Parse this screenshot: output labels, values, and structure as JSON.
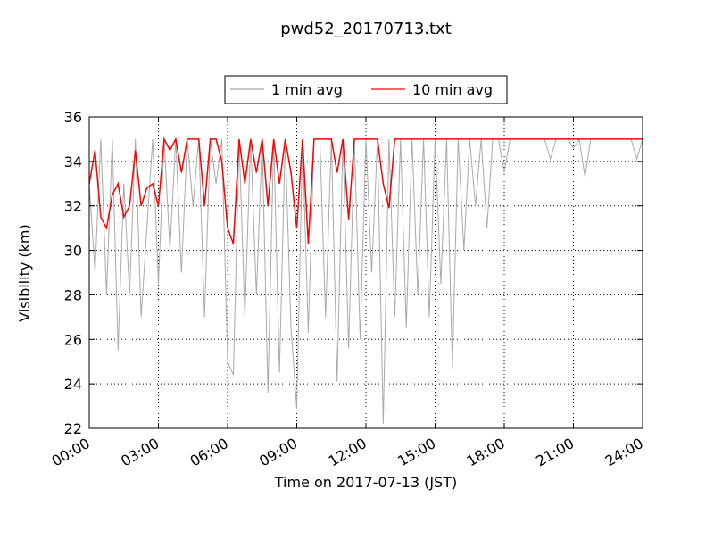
{
  "chart_data": {
    "type": "line",
    "title": "pwd52_20170713.txt",
    "x_label": "Time on 2017-07-13 (JST)",
    "y_label": "Visibility (km)",
    "x": [
      0,
      0.25,
      0.5,
      0.75,
      1,
      1.25,
      1.5,
      1.75,
      2,
      2.25,
      2.5,
      2.75,
      3,
      3.25,
      3.5,
      3.75,
      4,
      4.25,
      4.5,
      4.75,
      5,
      5.25,
      5.5,
      5.75,
      6,
      6.25,
      6.5,
      6.75,
      7,
      7.25,
      7.5,
      7.75,
      8,
      8.25,
      8.5,
      8.75,
      9,
      9.25,
      9.5,
      9.75,
      10,
      10.25,
      10.5,
      10.75,
      11,
      11.25,
      11.5,
      11.75,
      12,
      12.25,
      12.5,
      12.75,
      13,
      13.25,
      13.5,
      13.75,
      14,
      14.25,
      14.5,
      14.75,
      15,
      15.25,
      15.5,
      15.75,
      16,
      16.25,
      16.5,
      16.75,
      17,
      17.25,
      17.5,
      17.75,
      18,
      18.25,
      18.5,
      18.75,
      19,
      19.25,
      19.5,
      19.75,
      20,
      20.25,
      20.5,
      20.75,
      21,
      21.25,
      21.5,
      21.75,
      22,
      22.25,
      22.5,
      22.75,
      23,
      23.25,
      23.5,
      23.75,
      24
    ],
    "series": [
      {
        "name": "1 min avg",
        "color": "#a9a9a9",
        "values": [
          33,
          29,
          35,
          28,
          35,
          25.5,
          33,
          28,
          35,
          27,
          31,
          35,
          28.5,
          35,
          30,
          35,
          29,
          35,
          32,
          35,
          27,
          35,
          33,
          35,
          25,
          24.4,
          35,
          27,
          35,
          28,
          35,
          23.6,
          35,
          24.5,
          35,
          26.5,
          22.9,
          35,
          26.3,
          35,
          35,
          27,
          35,
          24.1,
          35,
          25.6,
          35,
          26,
          35,
          29,
          35,
          22.2,
          35,
          27,
          35,
          26.5,
          35,
          28,
          35,
          27,
          35,
          28.5,
          35,
          24.7,
          35,
          30,
          35,
          32,
          35,
          31,
          35,
          35,
          33.5,
          35,
          35,
          35,
          35,
          35,
          35,
          35,
          34.1,
          35,
          35,
          35,
          34.6,
          35,
          33.3,
          35,
          35,
          35,
          35,
          35,
          35,
          35,
          35,
          34.1,
          35
        ]
      },
      {
        "name": "10 min avg",
        "color": "#ff0000",
        "values": [
          33,
          34.5,
          31.5,
          31,
          32.5,
          33,
          31.5,
          32,
          34.5,
          32,
          32.8,
          33,
          32,
          35,
          34.5,
          35,
          33.5,
          35,
          35,
          35,
          32,
          35,
          35,
          34,
          31,
          30.3,
          35,
          33,
          35,
          33.5,
          35,
          32,
          35,
          33,
          35,
          33.5,
          31,
          35,
          30.3,
          35,
          35,
          35,
          35,
          33.5,
          35,
          31.4,
          35,
          35,
          35,
          35,
          35,
          33,
          31.9,
          35,
          35,
          35,
          35,
          35,
          35,
          35,
          35,
          35,
          35,
          35,
          35,
          35,
          35,
          35,
          35,
          35,
          35,
          35,
          35,
          35,
          35,
          35,
          35,
          35,
          35,
          35,
          35,
          35,
          35,
          35,
          35,
          35,
          35,
          35,
          35,
          35,
          35,
          35,
          35,
          35,
          35,
          35,
          35
        ]
      }
    ],
    "xlim": [
      0,
      24
    ],
    "xticks": [
      {
        "value": 0,
        "label": "00:00"
      },
      {
        "value": 3,
        "label": "03:00"
      },
      {
        "value": 6,
        "label": "06:00"
      },
      {
        "value": 9,
        "label": "09:00"
      },
      {
        "value": 12,
        "label": "12:00"
      },
      {
        "value": 15,
        "label": "15:00"
      },
      {
        "value": 18,
        "label": "18:00"
      },
      {
        "value": 21,
        "label": "21:00"
      },
      {
        "value": 24,
        "label": "24:00"
      }
    ],
    "ylim": [
      22,
      36
    ],
    "yticks": [
      22,
      24,
      26,
      28,
      30,
      32,
      34,
      36
    ],
    "grid": true,
    "legend": "upper center"
  }
}
